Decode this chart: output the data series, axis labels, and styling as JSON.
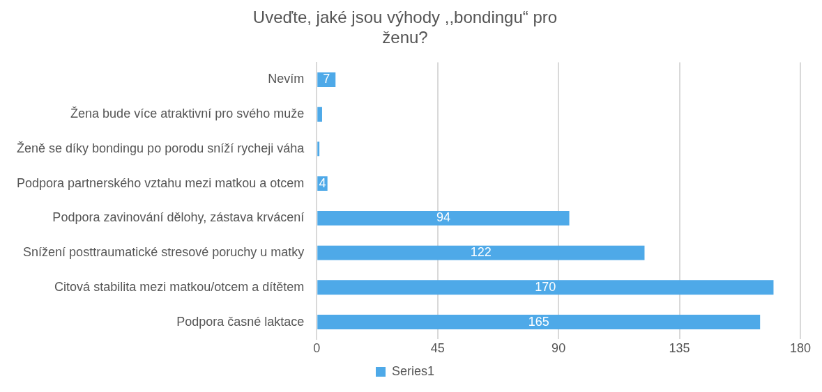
{
  "chart_data": {
    "type": "bar",
    "orientation": "horizontal",
    "title": "Uveďte, jaké jsou výhody ,,bondingu“ pro ženu?",
    "categories": [
      "Nevím",
      "Žena bude více atraktivní pro svého muže",
      "Ženě se díky bondingu po porodu sníží rycheji váha",
      "Podpora partnerského vztahu mezi matkou a otcem",
      "Podpora zavinování dělohy, zástava krvácení",
      "Snížení posttraumatické stresové poruchy u matky",
      "Citová stabilita mezi matkou/otcem a dítětem",
      "Podpora časné laktace"
    ],
    "series": [
      {
        "name": "Series1",
        "color": "#4ea9e8",
        "values": [
          7,
          2,
          1,
          4,
          94,
          122,
          170,
          165
        ],
        "value_labels": [
          "7",
          null,
          null,
          "4",
          "94",
          "122",
          "170",
          "165"
        ]
      }
    ],
    "xlim": [
      0,
      180
    ],
    "xticks": [
      0,
      45,
      90,
      135,
      180
    ],
    "grid": "x",
    "legend": "bottom"
  }
}
